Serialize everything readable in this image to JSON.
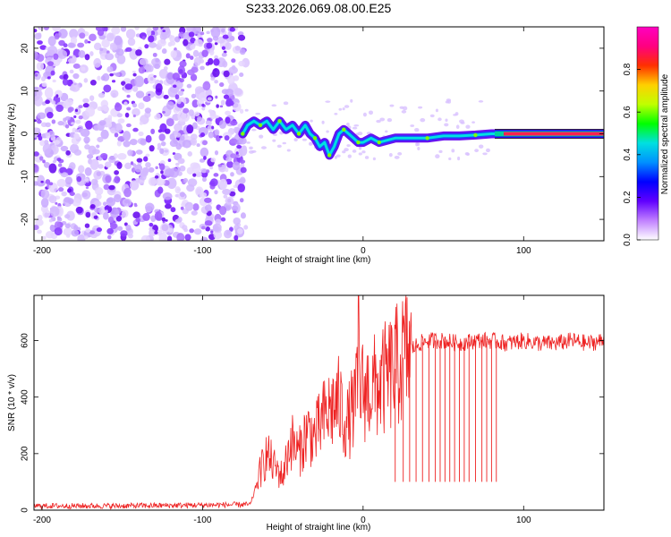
{
  "title": "S233.2026.069.08.00.E25",
  "chart_data": [
    {
      "type": "heatmap",
      "xlabel": "Height of straight line (km)",
      "ylabel": "Frequency (Hz)",
      "xlim": [
        -205,
        150
      ],
      "ylim": [
        -25,
        25
      ],
      "xticks": [
        -200,
        -100,
        0,
        100
      ],
      "yticks": [
        -20,
        -10,
        0,
        10,
        20
      ],
      "noise_region_x": [
        -205,
        -73
      ],
      "signal_track": {
        "x": [
          -75,
          -72,
          -68,
          -64,
          -60,
          -56,
          -52,
          -48,
          -44,
          -40,
          -36,
          -33,
          -30,
          -27,
          -24,
          -21,
          -18,
          -15,
          -12,
          -9,
          -6,
          -3,
          0,
          5,
          10,
          20,
          30,
          40,
          50,
          60,
          70,
          80,
          90,
          100,
          120,
          150
        ],
        "freq": [
          0,
          2,
          3,
          2,
          3,
          1,
          3,
          1,
          2,
          0,
          2,
          0,
          -1,
          -3,
          -2,
          -5,
          -3,
          0,
          1,
          0,
          -1,
          -2,
          -2,
          -1,
          -2,
          -1,
          -1,
          -1,
          -0.5,
          -0.5,
          -0.3,
          0,
          0,
          0,
          0,
          0
        ]
      },
      "colorbar": {
        "label": "Normalized spectral amplitude",
        "ticks": [
          0.0,
          0.2,
          0.4,
          0.6,
          0.8
        ],
        "range": [
          0,
          1
        ],
        "colors": [
          "#ffffff",
          "#c080ff",
          "#6000ff",
          "#0000ff",
          "#0090ff",
          "#00e0e0",
          "#00ff00",
          "#c0ff00",
          "#ffd000",
          "#ff3000",
          "#ff0080",
          "#ff00c0"
        ]
      }
    },
    {
      "type": "line",
      "xlabel": "Height of straight line (km)",
      "ylabel": "SNR (10 * v/v)",
      "xlim": [
        -205,
        150
      ],
      "ylim": [
        0,
        760
      ],
      "xticks": [
        -200,
        -100,
        0,
        100
      ],
      "yticks": [
        0,
        200,
        400,
        600
      ],
      "color": "#ee2222",
      "envelope": {
        "x": [
          -205,
          -150,
          -100,
          -70,
          -65,
          -60,
          -55,
          -50,
          -45,
          -40,
          -35,
          -30,
          -25,
          -20,
          -15,
          -10,
          -5,
          -2,
          0,
          5,
          10,
          15,
          20,
          25,
          30,
          35,
          40,
          50,
          60,
          70,
          80,
          90,
          100,
          110,
          120,
          130,
          140,
          150
        ],
        "y": [
          15,
          15,
          18,
          20,
          120,
          200,
          150,
          120,
          250,
          200,
          280,
          260,
          320,
          360,
          380,
          300,
          380,
          450,
          420,
          430,
          440,
          470,
          500,
          540,
          570,
          590,
          600,
          600,
          590,
          600,
          600,
          590,
          600,
          590,
          590,
          600,
          590,
          600
        ]
      },
      "spike": {
        "x": -3,
        "y": 760
      },
      "dropouts_x": [
        20,
        25,
        29,
        33,
        37,
        41,
        45,
        48,
        51,
        54,
        57,
        60,
        63,
        66,
        70,
        74,
        77,
        80,
        83
      ],
      "dropout_value": 100
    }
  ]
}
